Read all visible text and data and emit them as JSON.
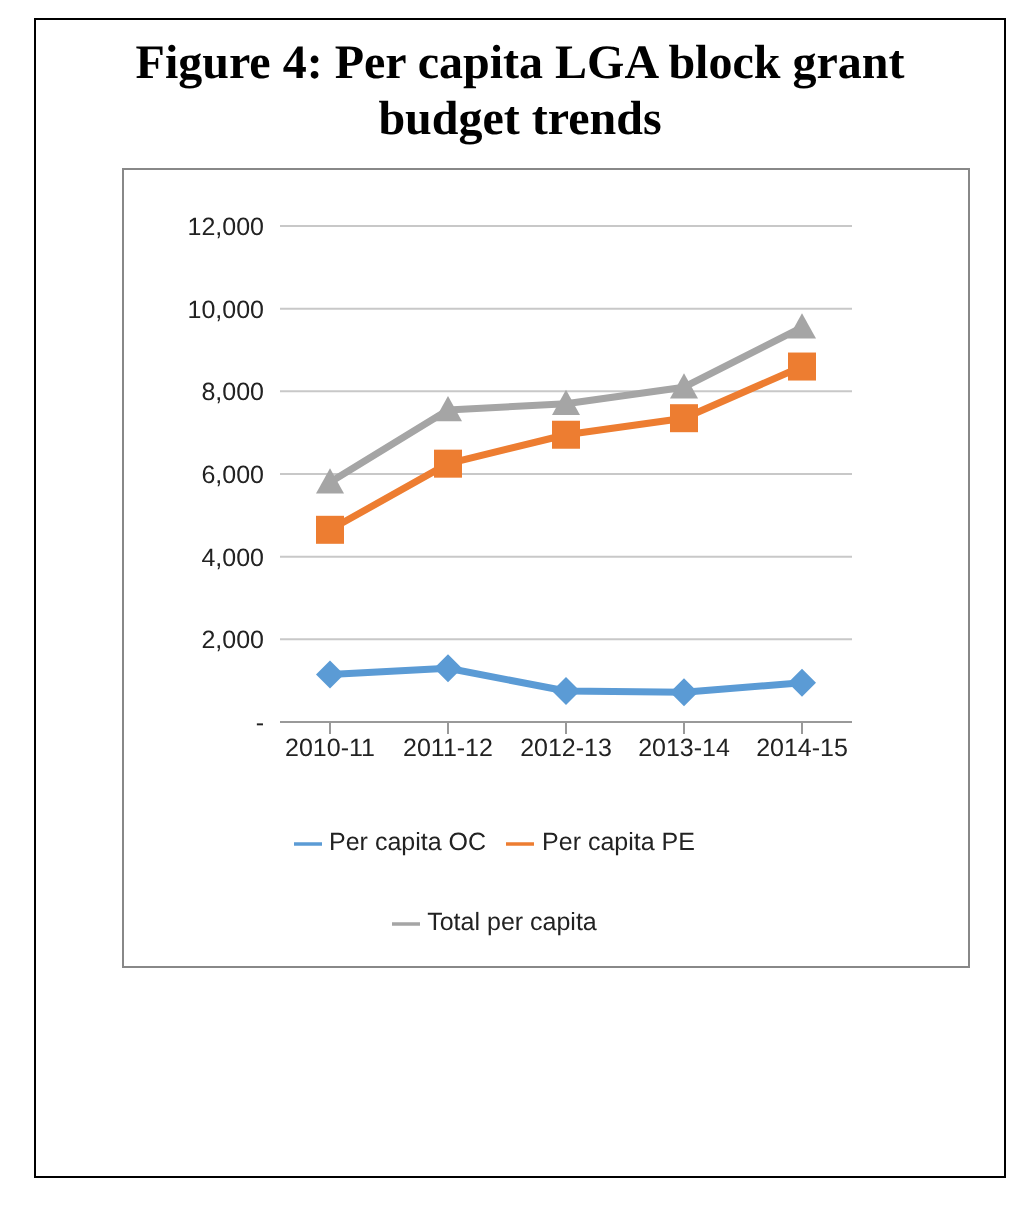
{
  "chart_data": {
    "type": "line",
    "title": "Figure 4: Per capita LGA block grant budget trends",
    "categories": [
      "2010-11",
      "2011-12",
      "2012-13",
      "2013-14",
      "2014-15"
    ],
    "series": [
      {
        "name": "Per capita OC",
        "color": "#5b9bd5",
        "marker": "diamond",
        "values": [
          1150,
          1300,
          750,
          720,
          950
        ]
      },
      {
        "name": "Per capita PE",
        "color": "#ed7d31",
        "marker": "square",
        "values": [
          4650,
          6250,
          6950,
          7350,
          8600
        ]
      },
      {
        "name": "Total per capita",
        "color": "#a5a5a5",
        "marker": "triangle",
        "values": [
          5800,
          7550,
          7700,
          8100,
          9550
        ]
      }
    ],
    "ylim": [
      0,
      12000
    ],
    "yticks": [
      {
        "value": 0,
        "label": "-"
      },
      {
        "value": 2000,
        "label": "2,000"
      },
      {
        "value": 4000,
        "label": "4,000"
      },
      {
        "value": 6000,
        "label": "6,000"
      },
      {
        "value": 8000,
        "label": "8,000"
      },
      {
        "value": 10000,
        "label": "10,000"
      },
      {
        "value": 12000,
        "label": "12,000"
      }
    ],
    "grid": "y",
    "legend": "bottom"
  }
}
